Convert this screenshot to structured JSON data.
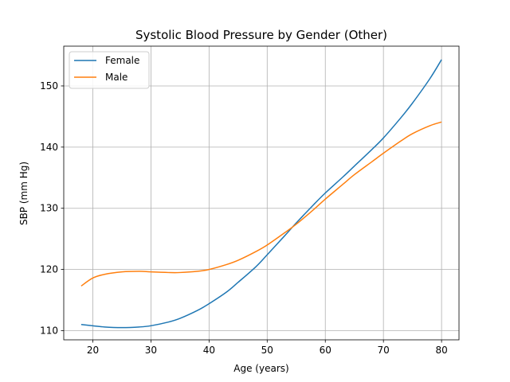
{
  "chart_data": {
    "type": "line",
    "title": "Systolic Blood Pressure by Gender (Other)",
    "xlabel": "Age (years)",
    "ylabel": "SBP (mm Hg)",
    "xlim": [
      15,
      83
    ],
    "ylim": [
      108.5,
      156.5
    ],
    "xticks": [
      20,
      30,
      40,
      50,
      60,
      70,
      80
    ],
    "yticks": [
      110,
      120,
      130,
      140,
      150
    ],
    "grid": true,
    "legend_position": "top-left",
    "series": [
      {
        "name": "Female",
        "color": "#1f77b4",
        "x": [
          18,
          20,
          22,
          25,
          28,
          30,
          33,
          35,
          38,
          40,
          43,
          45,
          48,
          50,
          53,
          55,
          58,
          60,
          63,
          65,
          68,
          70,
          73,
          75,
          78,
          80
        ],
        "y": [
          111.0,
          110.8,
          110.6,
          110.5,
          110.6,
          110.8,
          111.4,
          112.0,
          113.3,
          114.4,
          116.3,
          117.9,
          120.4,
          122.4,
          125.5,
          127.6,
          130.6,
          132.5,
          135.1,
          136.9,
          139.6,
          141.5,
          144.8,
          147.2,
          151.2,
          154.3
        ]
      },
      {
        "name": "Male",
        "color": "#ff7f0e",
        "x": [
          18,
          20,
          22,
          25,
          28,
          30,
          33,
          35,
          38,
          40,
          43,
          45,
          48,
          50,
          53,
          55,
          58,
          60,
          63,
          65,
          68,
          70,
          73,
          75,
          78,
          80
        ],
        "y": [
          117.3,
          118.6,
          119.2,
          119.6,
          119.7,
          119.6,
          119.5,
          119.5,
          119.7,
          120.0,
          120.8,
          121.5,
          122.9,
          124.0,
          126.0,
          127.4,
          129.8,
          131.5,
          133.9,
          135.5,
          137.6,
          139.0,
          141.0,
          142.2,
          143.5,
          144.1
        ]
      }
    ]
  }
}
